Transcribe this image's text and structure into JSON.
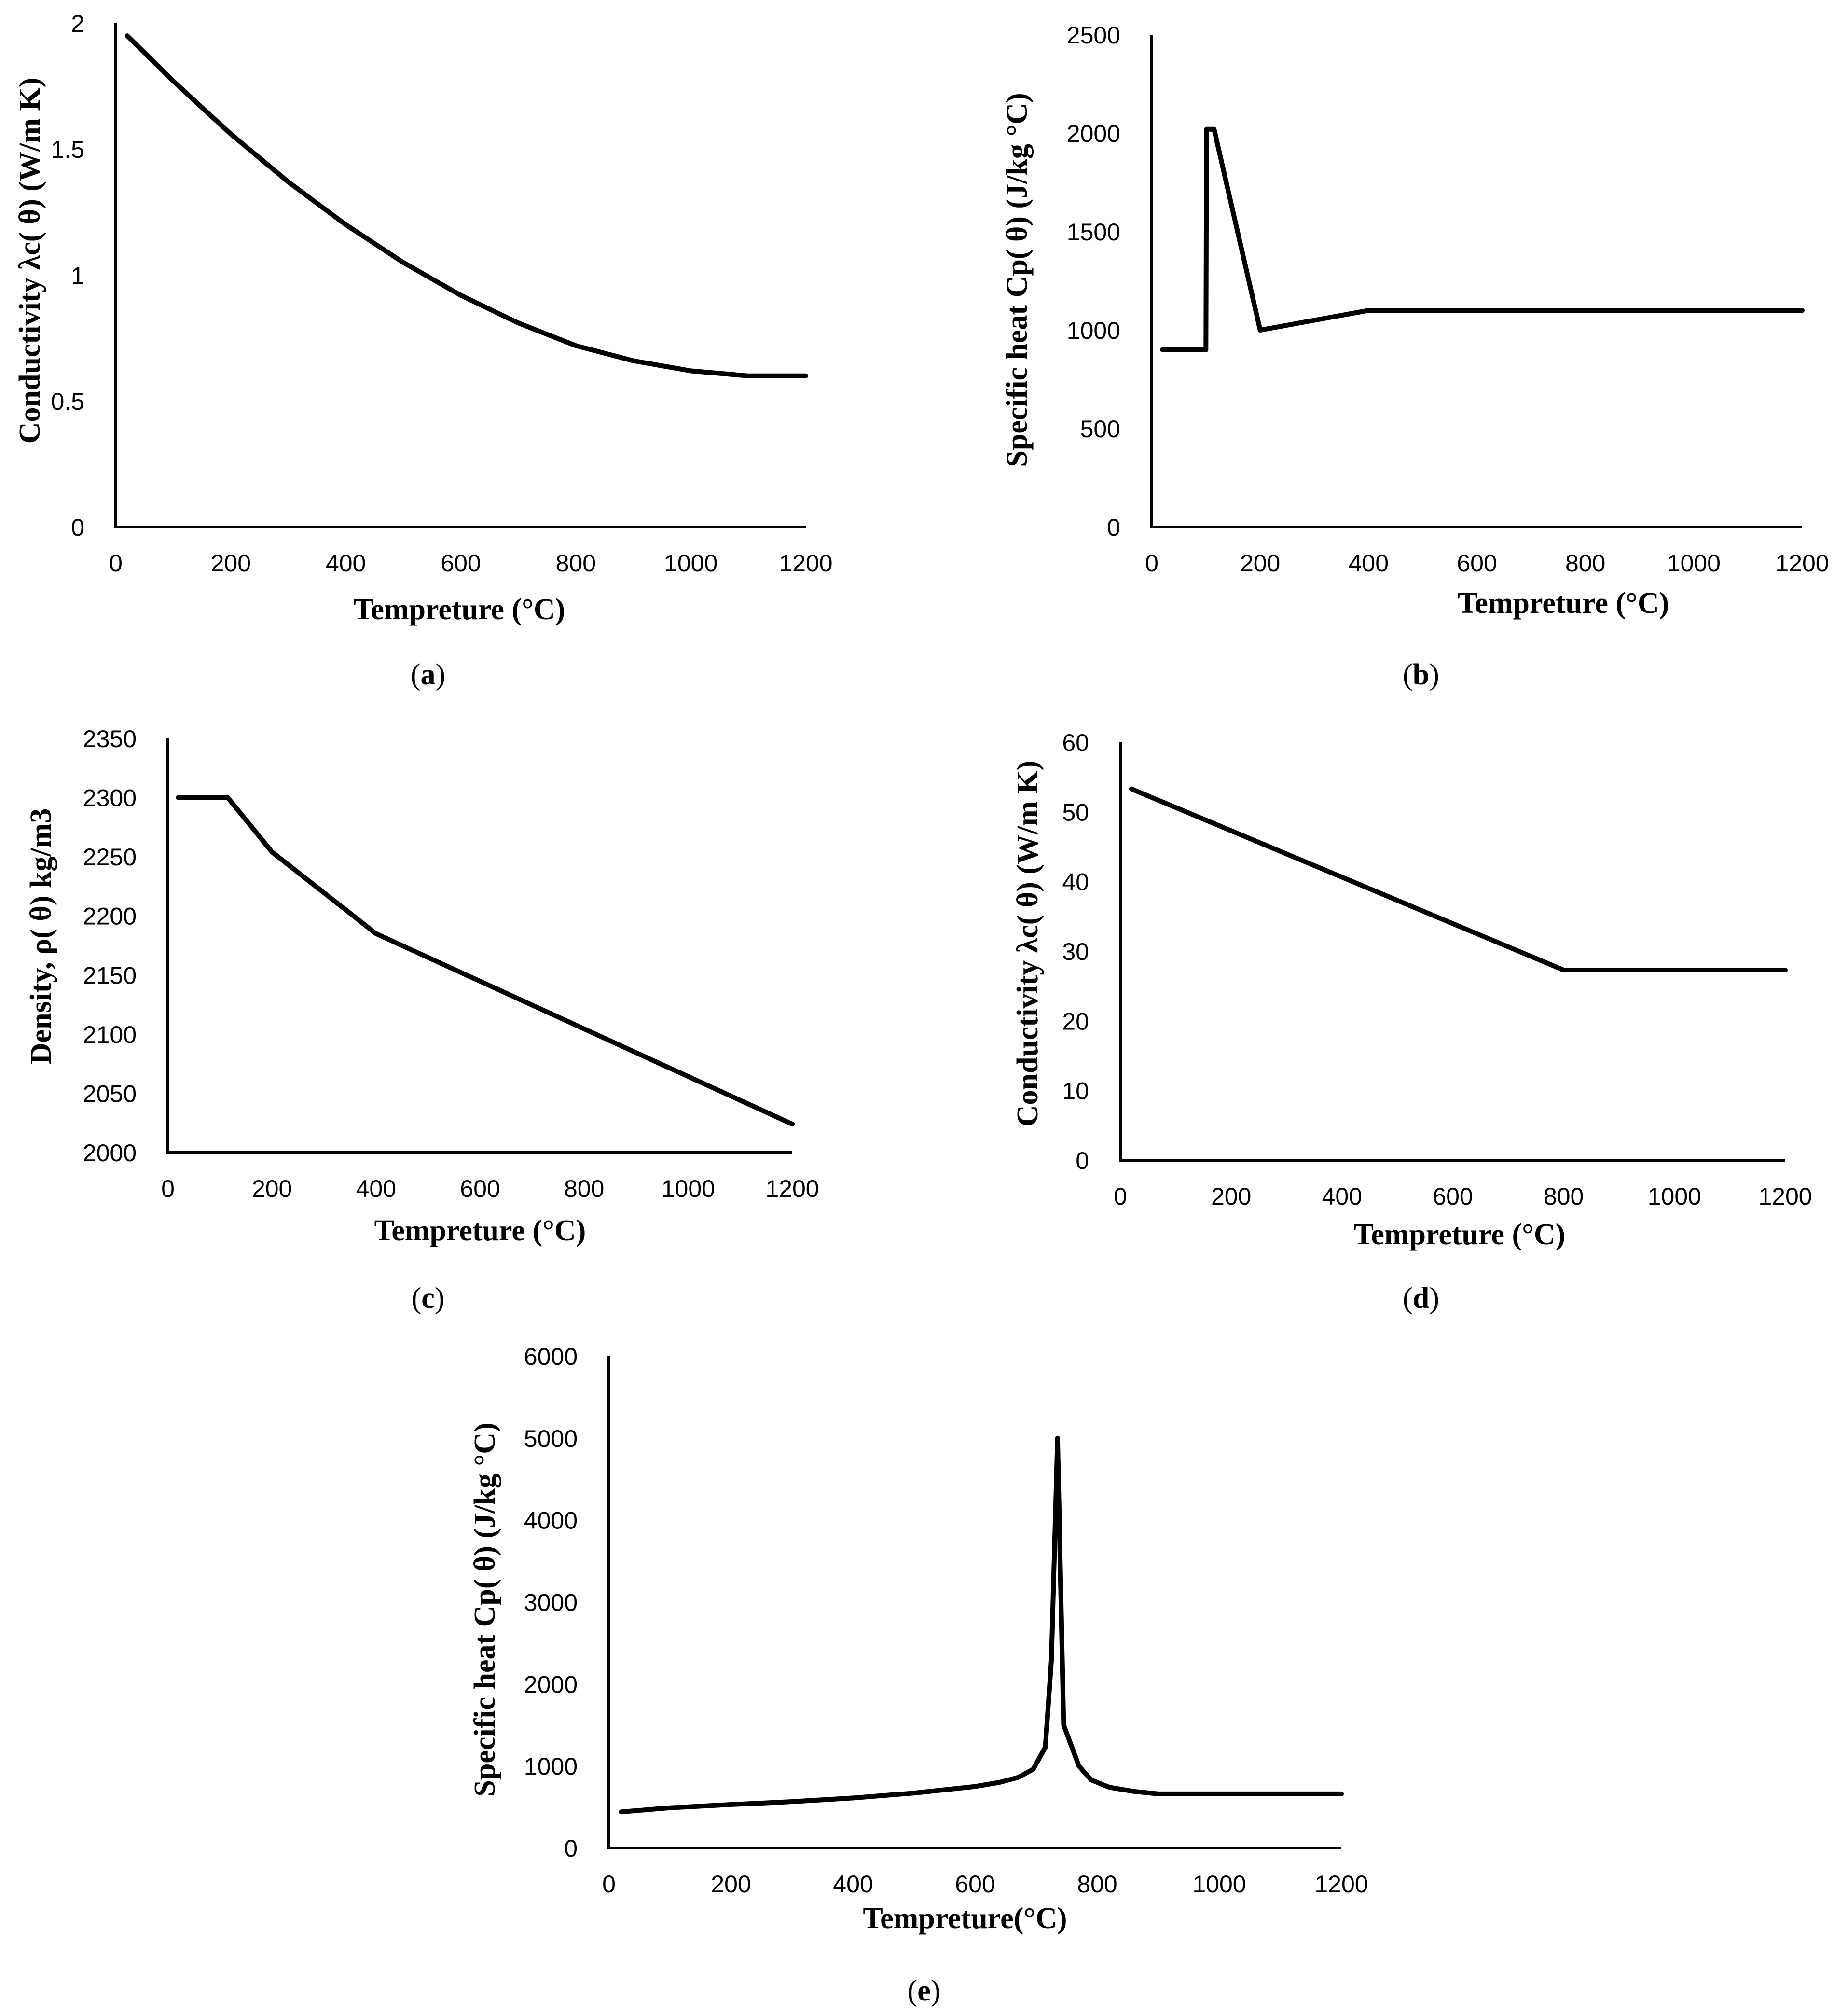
{
  "chart_data": [
    {
      "id": "a",
      "type": "line",
      "caption": "a",
      "xlabel": "Tempreture (°C)",
      "ylabel": "Conductivity λc( θ) (W/m K)",
      "xlim": [
        0,
        1200
      ],
      "ylim": [
        0,
        2
      ],
      "xticks": [
        "0",
        "200",
        "400",
        "600",
        "800",
        "1000",
        "1200"
      ],
      "yticks": [
        "0",
        "0.5",
        "1",
        "1.5",
        "2"
      ],
      "x": [
        20,
        100,
        200,
        300,
        400,
        500,
        600,
        700,
        800,
        900,
        1000,
        1100,
        1200
      ],
      "y": [
        1.95,
        1.77,
        1.56,
        1.37,
        1.2,
        1.05,
        0.92,
        0.81,
        0.72,
        0.66,
        0.62,
        0.6,
        0.6
      ]
    },
    {
      "id": "b",
      "type": "line",
      "caption": "b",
      "xlabel": "Tempreture (°C)",
      "ylabel": "Specific heat Cp( θ) (J/kg °C)",
      "xlim": [
        0,
        1200
      ],
      "ylim": [
        0,
        2500
      ],
      "xticks": [
        "0",
        "200",
        "400",
        "600",
        "800",
        "1000",
        "1200"
      ],
      "yticks": [
        "0",
        "500",
        "1000",
        "1500",
        "2000",
        "2500"
      ],
      "x": [
        20,
        100,
        101,
        115,
        200,
        400,
        1200
      ],
      "y": [
        900,
        900,
        2020,
        2020,
        1000,
        1100,
        1100
      ]
    },
    {
      "id": "c",
      "type": "line",
      "caption": "c",
      "xlabel": "Tempreture (°C)",
      "ylabel": "Density, ρ( θ) kg/m3",
      "xlim": [
        0,
        1200
      ],
      "ylim": [
        2000,
        2350
      ],
      "xticks": [
        "0",
        "200",
        "400",
        "600",
        "800",
        "1000",
        "1200"
      ],
      "yticks": [
        "2000",
        "2050",
        "2100",
        "2150",
        "2200",
        "2250",
        "2300",
        "2350"
      ],
      "x": [
        20,
        115,
        200,
        400,
        1200
      ],
      "y": [
        2300,
        2300,
        2254,
        2185,
        2024
      ]
    },
    {
      "id": "d",
      "type": "line",
      "caption": "d",
      "xlabel": "Tempreture (°C)",
      "ylabel": "Conductivity λc( θ) (W/m K)",
      "xlim": [
        0,
        1200
      ],
      "ylim": [
        0,
        60
      ],
      "xticks": [
        "0",
        "200",
        "400",
        "600",
        "800",
        "1000",
        "1200"
      ],
      "yticks": [
        "0",
        "10",
        "20",
        "30",
        "40",
        "50",
        "60"
      ],
      "x": [
        20,
        800,
        1200
      ],
      "y": [
        53.3,
        27.3,
        27.3
      ]
    },
    {
      "id": "e",
      "type": "line",
      "caption": "e",
      "xlabel": "Tempreture(°C)",
      "ylabel": "Specific heat Cp( θ) (J/kg °C)",
      "xlim": [
        0,
        1200
      ],
      "ylim": [
        0,
        6000
      ],
      "xticks": [
        "0",
        "200",
        "400",
        "600",
        "800",
        "1000",
        "1200"
      ],
      "yticks": [
        "0",
        "1000",
        "2000",
        "3000",
        "4000",
        "5000",
        "6000"
      ],
      "x": [
        20,
        100,
        200,
        300,
        400,
        500,
        600,
        640,
        670,
        695,
        715,
        725,
        735,
        745,
        770,
        790,
        820,
        860,
        900,
        1000,
        1200
      ],
      "y": [
        440,
        490,
        530,
        565,
        610,
        670,
        750,
        800,
        860,
        960,
        1230,
        2300,
        5000,
        1500,
        1000,
        830,
        740,
        690,
        660,
        660,
        660
      ]
    }
  ]
}
